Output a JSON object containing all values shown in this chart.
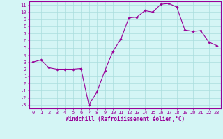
{
  "x": [
    0,
    1,
    2,
    3,
    4,
    5,
    6,
    7,
    8,
    9,
    10,
    11,
    12,
    13,
    14,
    15,
    16,
    17,
    18,
    19,
    20,
    21,
    22,
    23
  ],
  "y": [
    3.0,
    3.3,
    2.2,
    2.0,
    2.0,
    2.0,
    2.1,
    -3.0,
    -1.2,
    1.8,
    4.5,
    6.2,
    9.2,
    9.3,
    10.2,
    10.0,
    11.1,
    11.2,
    10.7,
    7.5,
    7.3,
    7.4,
    5.8,
    5.3
  ],
  "line_color": "#990099",
  "marker": "D",
  "marker_size": 1.8,
  "bg_color": "#d4f5f5",
  "grid_color": "#aadddd",
  "xlabel": "Windchill (Refroidissement éolien,°C)",
  "ylim": [
    -3.5,
    11.5
  ],
  "yticks": [
    -3,
    -2,
    -1,
    0,
    1,
    2,
    3,
    4,
    5,
    6,
    7,
    8,
    9,
    10,
    11
  ],
  "xticks": [
    0,
    1,
    2,
    3,
    4,
    5,
    6,
    7,
    8,
    9,
    10,
    11,
    12,
    13,
    14,
    15,
    16,
    17,
    18,
    19,
    20,
    21,
    22,
    23
  ],
  "tick_color": "#990099",
  "label_color": "#990099",
  "axis_line_color": "#990099",
  "tick_fontsize": 5.0,
  "xlabel_fontsize": 5.5,
  "linewidth": 0.8
}
